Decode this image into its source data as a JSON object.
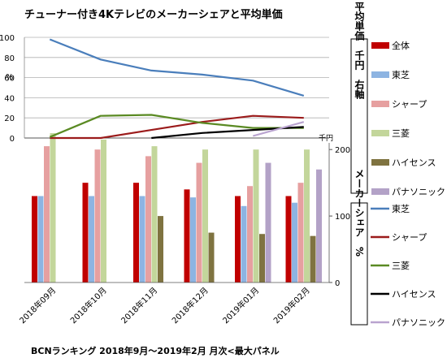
{
  "chart_data": {
    "title": "チューナー付き4Kテレビのメーカーシェアと平均単価",
    "footnote": "BCNランキング 2018年9月～2019年2月 月次<最大パネル",
    "categories": [
      "2018年09月",
      "2018年10月",
      "2018年11月",
      "2018年12月",
      "2019年01月",
      "2019年02月"
    ],
    "share_chart": {
      "type": "line",
      "unit_label": "%",
      "ylim": [
        0,
        100
      ],
      "yticks": [
        0,
        20,
        40,
        60,
        80,
        100
      ],
      "grid": true,
      "series": [
        {
          "name": "東芝",
          "color": "#4a7ebb",
          "values": [
            98,
            78,
            67,
            63,
            57,
            42
          ]
        },
        {
          "name": "シャープ",
          "color": "#9b1b1b",
          "values": [
            0,
            0,
            8,
            16,
            22,
            20
          ]
        },
        {
          "name": "三菱",
          "color": "#5a8a23",
          "values": [
            1,
            22,
            23,
            15,
            10,
            10
          ]
        },
        {
          "name": "ハイセンス",
          "color": "#000000",
          "values": [
            null,
            null,
            0,
            5,
            8,
            11
          ]
        },
        {
          "name": "パナソニック",
          "color": "#b9a3cf",
          "values": [
            null,
            null,
            null,
            null,
            2,
            16
          ]
        }
      ]
    },
    "price_chart": {
      "type": "bar",
      "unit_label": "千円",
      "axis_side": "right",
      "ylim": [
        0,
        210
      ],
      "yticks": [
        0,
        100,
        200
      ],
      "series": [
        {
          "name": "全体",
          "color": "#c00000",
          "values": [
            130,
            150,
            150,
            140,
            130,
            130
          ]
        },
        {
          "name": "東芝",
          "color": "#8db4e2",
          "values": [
            130,
            130,
            130,
            128,
            115,
            120
          ]
        },
        {
          "name": "シャープ",
          "color": "#e6a0a0",
          "values": [
            205,
            200,
            190,
            180,
            145,
            150
          ]
        },
        {
          "name": "三菱",
          "color": "#c3d69b",
          "values": [
            225,
            215,
            205,
            200,
            200,
            200
          ]
        },
        {
          "name": "ハイセンス",
          "color": "#7f7340",
          "values": [
            null,
            null,
            100,
            75,
            73,
            70
          ]
        },
        {
          "name": "パナソニック",
          "color": "#b3a2c7",
          "values": [
            null,
            null,
            null,
            null,
            180,
            170
          ]
        }
      ]
    },
    "legend_price": {
      "label": "平均単価　千円　右軸",
      "items": [
        "全体",
        "東芝",
        "シャープ",
        "三菱",
        "ハイセンス",
        "パナソニック"
      ]
    },
    "legend_share": {
      "label": "メーカーシェア　%",
      "items": [
        "東芝",
        "シャープ",
        "三菱",
        "ハイセンス",
        "パナソニック"
      ]
    }
  }
}
